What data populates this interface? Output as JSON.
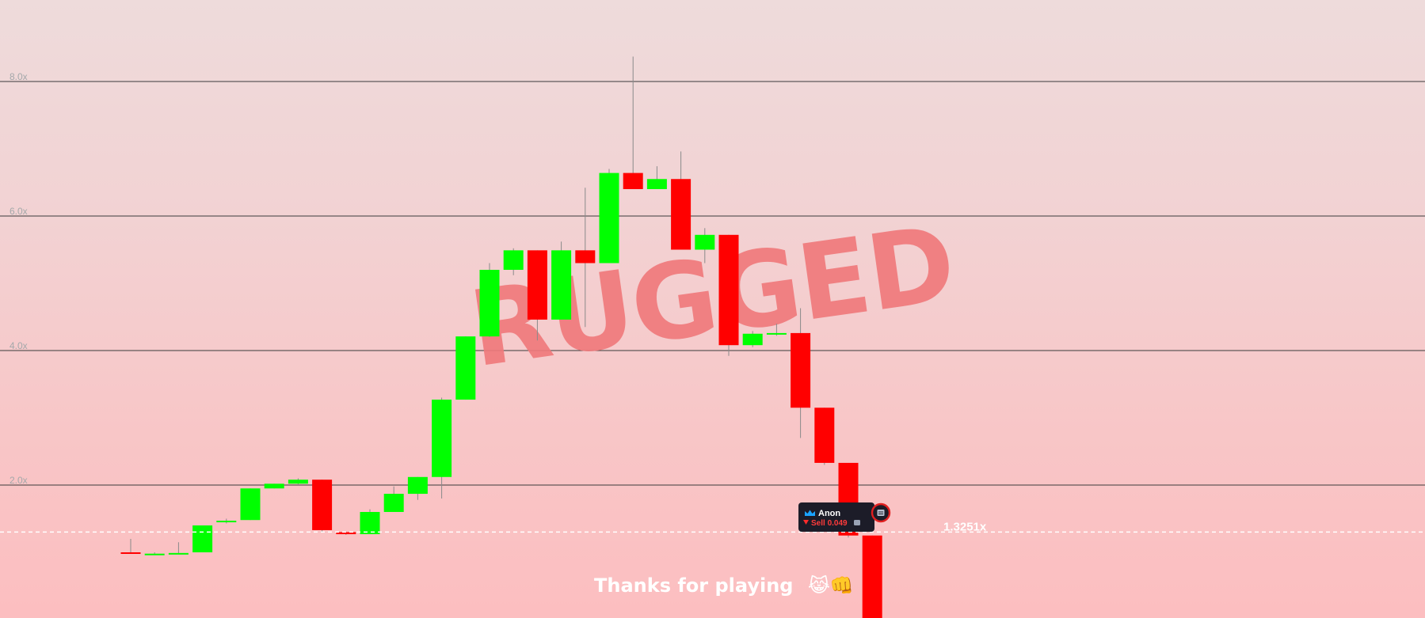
{
  "colors": {
    "up": "#00ff00",
    "down": "#ff0000",
    "gridline": "#3b3b3b",
    "tick_label": "#a4a8aa",
    "current_line": "#ffffff",
    "stamp": "#f07a7c",
    "tooltip_bg": "#1c1c28"
  },
  "stamp": {
    "text": "RUGGED"
  },
  "footer": {
    "message": "Thanks for playing",
    "emojis": "😹👊"
  },
  "current": {
    "label": "1.3251x",
    "value": 1.3251
  },
  "trade_marker": {
    "user": "Anon",
    "action": "Sell 0.049",
    "user_icon": "crown-icon",
    "action_icon": "down-triangle-icon",
    "chip_icon": "sol-coin-icon",
    "marker_icon": "trade-marker-icon"
  },
  "chart_data": {
    "type": "candlestick",
    "title": "",
    "xlabel": "",
    "ylabel": "",
    "ylim": [
      0,
      8.5
    ],
    "grid": true,
    "y_ticks": [
      {
        "value": 2.0,
        "label": "2.0x"
      },
      {
        "value": 4.0,
        "label": "4.0x"
      },
      {
        "value": 6.0,
        "label": "6.0x"
      },
      {
        "value": 8.0,
        "label": "8.0x"
      }
    ],
    "candles": [
      {
        "o": 1.0,
        "h": 1.2,
        "l": 1.0,
        "c": 0.98
      },
      {
        "o": 0.98,
        "h": 1.0,
        "l": 0.96,
        "c": 0.98
      },
      {
        "o": 0.98,
        "h": 1.15,
        "l": 0.98,
        "c": 0.99
      },
      {
        "o": 1.0,
        "h": 1.4,
        "l": 1.0,
        "c": 1.4
      },
      {
        "o": 1.45,
        "h": 1.5,
        "l": 1.43,
        "c": 1.47
      },
      {
        "o": 1.48,
        "h": 1.95,
        "l": 1.48,
        "c": 1.95
      },
      {
        "o": 1.95,
        "h": 2.02,
        "l": 1.95,
        "c": 2.02
      },
      {
        "o": 2.02,
        "h": 2.1,
        "l": 2.0,
        "c": 2.08
      },
      {
        "o": 2.08,
        "h": 2.08,
        "l": 1.3,
        "c": 1.33
      },
      {
        "o": 1.3,
        "h": 1.31,
        "l": 1.26,
        "c": 1.27
      },
      {
        "o": 1.27,
        "h": 1.64,
        "l": 1.27,
        "c": 1.6
      },
      {
        "o": 1.6,
        "h": 1.98,
        "l": 1.6,
        "c": 1.87
      },
      {
        "o": 1.87,
        "h": 2.12,
        "l": 1.78,
        "c": 2.12
      },
      {
        "o": 2.12,
        "h": 3.3,
        "l": 1.8,
        "c": 3.27
      },
      {
        "o": 3.27,
        "h": 4.21,
        "l": 3.27,
        "c": 4.21
      },
      {
        "o": 4.21,
        "h": 5.3,
        "l": 4.2,
        "c": 5.2
      },
      {
        "o": 5.2,
        "h": 5.52,
        "l": 5.12,
        "c": 5.49
      },
      {
        "o": 5.49,
        "h": 5.49,
        "l": 4.15,
        "c": 4.46
      },
      {
        "o": 4.46,
        "h": 5.62,
        "l": 4.46,
        "c": 5.49
      },
      {
        "o": 5.49,
        "h": 6.42,
        "l": 4.35,
        "c": 5.3
      },
      {
        "o": 5.3,
        "h": 6.7,
        "l": 5.3,
        "c": 6.64
      },
      {
        "o": 6.64,
        "h": 8.37,
        "l": 6.4,
        "c": 6.4
      },
      {
        "o": 6.4,
        "h": 6.74,
        "l": 6.4,
        "c": 6.55
      },
      {
        "o": 6.55,
        "h": 6.96,
        "l": 5.5,
        "c": 5.5
      },
      {
        "o": 5.5,
        "h": 5.82,
        "l": 5.3,
        "c": 5.72
      },
      {
        "o": 5.72,
        "h": 5.72,
        "l": 3.92,
        "c": 4.08
      },
      {
        "o": 4.08,
        "h": 4.29,
        "l": 4.05,
        "c": 4.25
      },
      {
        "o": 4.25,
        "h": 4.4,
        "l": 4.22,
        "c": 4.26
      },
      {
        "o": 4.26,
        "h": 4.63,
        "l": 2.7,
        "c": 3.15
      },
      {
        "o": 3.15,
        "h": 3.15,
        "l": 2.3,
        "c": 2.33
      },
      {
        "o": 2.33,
        "h": 2.33,
        "l": 1.22,
        "c": 1.25
      },
      {
        "o": 1.25,
        "h": 1.25,
        "l": 0.0,
        "c": 0.0
      }
    ]
  }
}
